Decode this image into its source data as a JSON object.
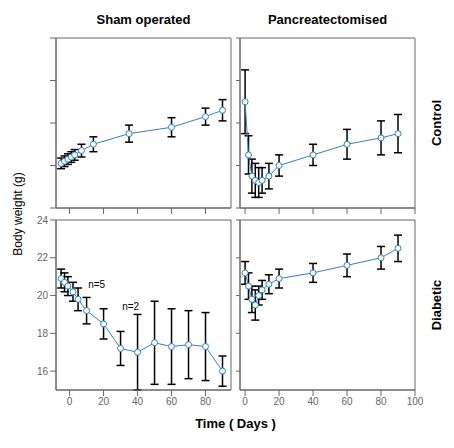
{
  "col_titles": [
    "Sham operated",
    "Pancreatectomised"
  ],
  "row_labels": [
    "Control",
    "Diabetic"
  ],
  "xlabel": "Time ( Days )",
  "ylabel": "Body weight (g)",
  "chart_data": [
    {
      "type": "line",
      "marker": "circle",
      "x": [
        -5,
        -3,
        -1,
        1,
        3,
        7,
        14,
        35,
        60,
        80,
        90
      ],
      "values": [
        22.1,
        22.2,
        22.3,
        22.4,
        22.5,
        22.7,
        23.0,
        23.5,
        23.8,
        24.3,
        24.6
      ],
      "yerr": [
        0.25,
        0.25,
        0.25,
        0.25,
        0.25,
        0.3,
        0.35,
        0.4,
        0.45,
        0.4,
        0.5
      ],
      "xlim": [
        -8,
        95
      ],
      "xticks": [
        0,
        20,
        40,
        60,
        80
      ],
      "ylim": [
        20,
        28
      ],
      "yticks": [
        20,
        22,
        24,
        26,
        28
      ],
      "tick_labels": false
    },
    {
      "type": "line",
      "marker": "circle",
      "x": [
        0,
        2,
        4,
        6,
        8,
        10,
        14,
        20,
        40,
        60,
        80,
        90
      ],
      "values": [
        25.0,
        22.5,
        21.5,
        21.3,
        21.2,
        21.3,
        21.5,
        22.0,
        22.5,
        23.0,
        23.3,
        23.5
      ],
      "yerr": [
        1.5,
        0.9,
        0.8,
        0.8,
        0.7,
        0.6,
        0.6,
        0.5,
        0.5,
        0.7,
        0.8,
        0.9
      ],
      "xlim": [
        -3,
        100
      ],
      "xticks": [
        0,
        20,
        40,
        60,
        80,
        100
      ],
      "ylim": [
        20,
        28
      ],
      "yticks": [
        20,
        22,
        24,
        26,
        28
      ],
      "tick_labels": false
    },
    {
      "type": "line",
      "marker": "circle",
      "x": [
        -5,
        -3,
        -1,
        2,
        5,
        10,
        20,
        30,
        40,
        50,
        60,
        70,
        80,
        90
      ],
      "values": [
        20.9,
        20.7,
        20.5,
        20.2,
        19.8,
        19.2,
        18.5,
        17.2,
        17.0,
        17.5,
        17.3,
        17.4,
        17.3,
        16.0
      ],
      "yerr": [
        0.5,
        0.5,
        0.5,
        0.5,
        0.6,
        0.7,
        0.8,
        0.9,
        2.0,
        2.2,
        2.0,
        1.8,
        1.8,
        0.8
      ],
      "xlim": [
        -8,
        95
      ],
      "xticks": [
        0,
        20,
        40,
        60,
        80
      ],
      "ylim": [
        15,
        24
      ],
      "yticks": [
        16,
        18,
        20,
        22,
        24
      ],
      "annotations": [
        {
          "text": "n=5",
          "x": 8,
          "y": 20.6
        },
        {
          "text": "n=2",
          "x": 28,
          "y": 19.4
        }
      ]
    },
    {
      "type": "line",
      "marker": "circle",
      "x": [
        0,
        2,
        4,
        6,
        8,
        10,
        14,
        20,
        40,
        60,
        80,
        90
      ],
      "values": [
        21.2,
        20.5,
        19.8,
        19.5,
        20.0,
        20.3,
        20.6,
        20.9,
        21.2,
        21.6,
        22.0,
        22.5
      ],
      "yerr": [
        0.6,
        0.7,
        0.7,
        0.8,
        0.5,
        0.5,
        0.5,
        0.5,
        0.5,
        0.6,
        0.6,
        0.7
      ],
      "xlim": [
        -3,
        100
      ],
      "xticks": [
        0,
        20,
        40,
        60,
        80,
        100
      ],
      "ylim": [
        15,
        24
      ],
      "yticks": [
        16,
        18,
        20,
        22,
        24
      ],
      "tick_labels": "x"
    }
  ]
}
